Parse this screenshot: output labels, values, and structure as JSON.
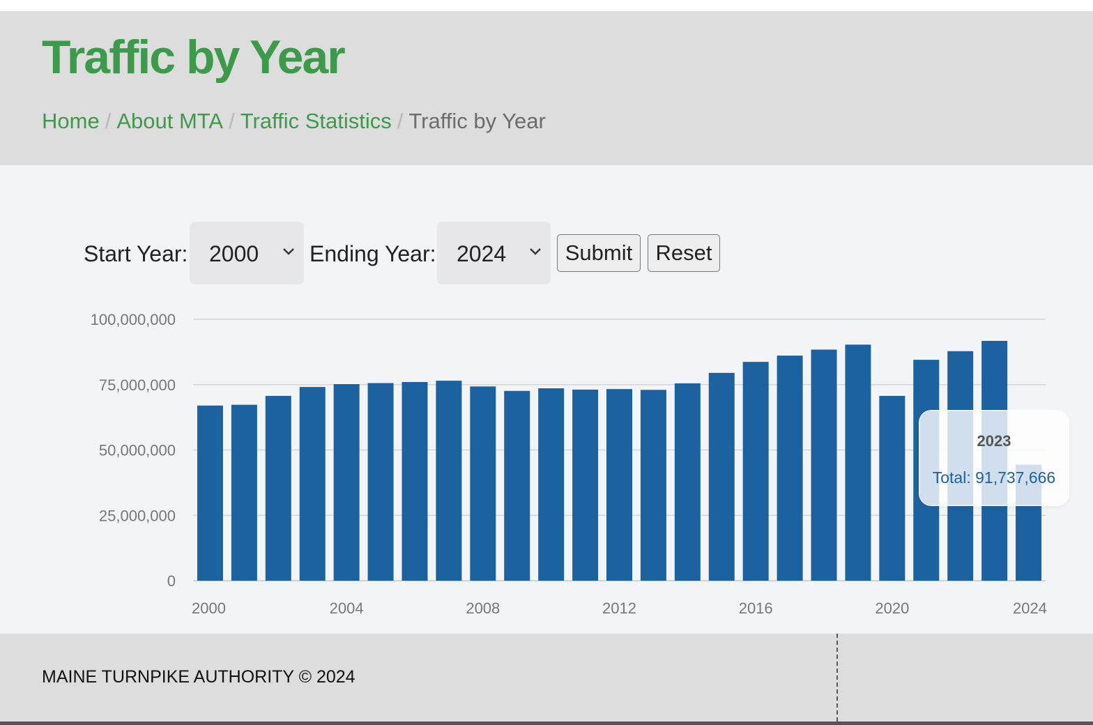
{
  "header": {
    "title": "Traffic by Year",
    "breadcrumb": [
      {
        "label": "Home"
      },
      {
        "label": "About MTA"
      },
      {
        "label": "Traffic Statistics"
      },
      {
        "label": "Traffic by Year"
      }
    ],
    "brand_color": "#3c9a4b"
  },
  "controls": {
    "start_label": "Start Year:",
    "start_value": "2000",
    "end_label": "Ending Year:",
    "end_value": "2024",
    "submit_label": "Submit",
    "reset_label": "Reset"
  },
  "chart_data": {
    "type": "bar",
    "bar_color": "#1c62a0",
    "x": [
      2000,
      2001,
      2002,
      2003,
      2004,
      2005,
      2006,
      2007,
      2008,
      2009,
      2010,
      2011,
      2012,
      2013,
      2014,
      2015,
      2016,
      2017,
      2018,
      2019,
      2020,
      2021,
      2022,
      2023,
      2024
    ],
    "values": [
      67000000,
      67300000,
      70700000,
      74100000,
      75200000,
      75600000,
      76000000,
      76500000,
      74300000,
      72600000,
      73600000,
      73100000,
      73300000,
      73000000,
      75500000,
      79500000,
      83700000,
      86100000,
      88400000,
      90300000,
      70700000,
      84500000,
      87800000,
      91737666,
      44400000
    ],
    "x_ticks": [
      "2000",
      "2004",
      "2008",
      "2012",
      "2016",
      "2020",
      "2024"
    ],
    "y_ticks": [
      "0",
      "25,000,000",
      "50,000,000",
      "75,000,000",
      "100,000,000"
    ],
    "ylim": [
      0,
      100000000
    ],
    "grid": true,
    "tooltip": {
      "year": "2023",
      "total": "Total: 91,737,666"
    }
  },
  "footer": {
    "text": "MAINE TURNPIKE AUTHORITY © 2024"
  }
}
